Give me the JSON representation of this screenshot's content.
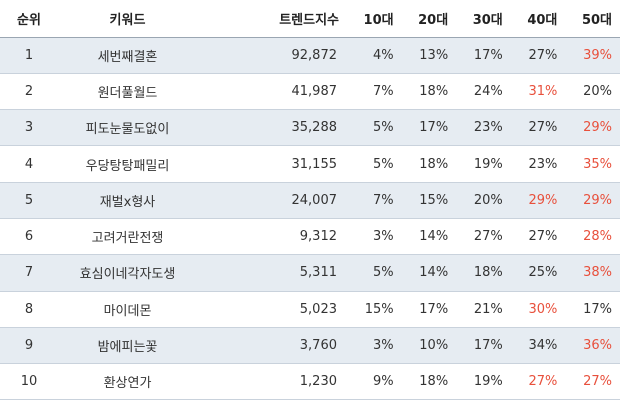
{
  "chart_data": {
    "type": "table",
    "highlight_color": "#e8503c",
    "columns": [
      "순위",
      "키워드",
      "트렌드지수",
      "10대",
      "20대",
      "30대",
      "40대",
      "50대"
    ],
    "rows": [
      [
        "1",
        "세번째결혼",
        "92,872",
        "4%",
        "13%",
        "17%",
        "27%",
        "39%"
      ],
      [
        "2",
        "원더풀월드",
        "41,987",
        "7%",
        "18%",
        "24%",
        "31%",
        "20%"
      ],
      [
        "3",
        "피도눈물도없이",
        "35,288",
        "5%",
        "17%",
        "23%",
        "27%",
        "29%"
      ],
      [
        "4",
        "우당탕탕패밀리",
        "31,155",
        "5%",
        "18%",
        "19%",
        "23%",
        "35%"
      ],
      [
        "5",
        "재벌x형사",
        "24,007",
        "7%",
        "15%",
        "20%",
        "29%",
        "29%"
      ],
      [
        "6",
        "고려거란전쟁",
        "9,312",
        "3%",
        "14%",
        "27%",
        "27%",
        "28%"
      ],
      [
        "7",
        "효심이네각자도생",
        "5,311",
        "5%",
        "14%",
        "18%",
        "25%",
        "38%"
      ],
      [
        "8",
        "마이데몬",
        "5,023",
        "15%",
        "17%",
        "21%",
        "30%",
        "17%"
      ],
      [
        "9",
        "밤에피는꽃",
        "3,760",
        "3%",
        "10%",
        "17%",
        "34%",
        "36%"
      ],
      [
        "10",
        "환상연가",
        "1,230",
        "9%",
        "18%",
        "19%",
        "27%",
        "27%"
      ]
    ],
    "highlighted_age_cells": [
      [
        0,
        4
      ],
      [
        1,
        3
      ],
      [
        2,
        4
      ],
      [
        3,
        4
      ],
      [
        4,
        3
      ],
      [
        4,
        4
      ],
      [
        5,
        4
      ],
      [
        6,
        4
      ],
      [
        7,
        3
      ],
      [
        8,
        4
      ],
      [
        9,
        3
      ],
      [
        9,
        4
      ]
    ]
  }
}
